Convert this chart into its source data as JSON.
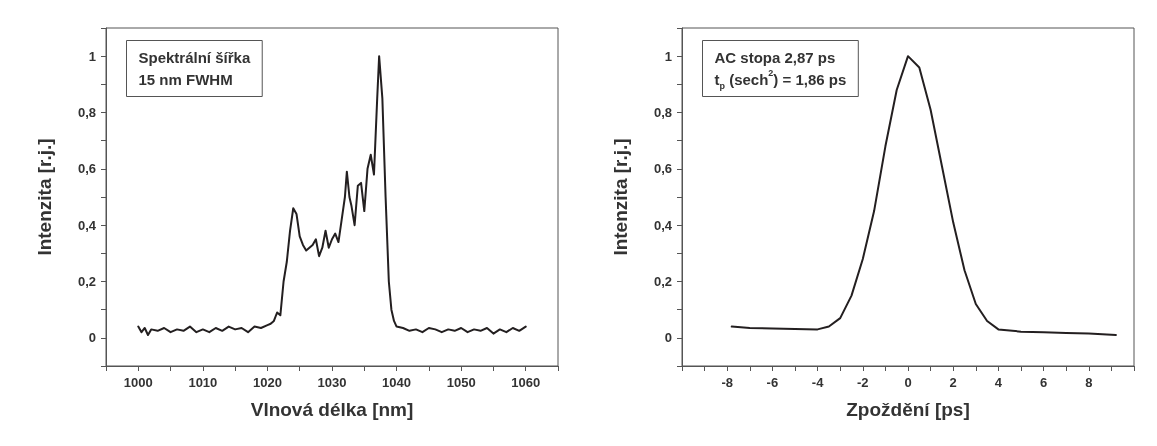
{
  "chart_data": [
    {
      "type": "line",
      "xlabel": "Vlnová délka [nm]",
      "ylabel": "Intenzita [r.j.]",
      "annotations": [
        "Spektrální šířka",
        "15 nm FWHM"
      ],
      "x": [
        1000,
        1000.5,
        1001,
        1001.5,
        1002,
        1003,
        1004,
        1005,
        1006,
        1007,
        1008,
        1009,
        1010,
        1011,
        1012,
        1013,
        1014,
        1015,
        1016,
        1017,
        1018,
        1019,
        1020,
        1020.5,
        1021,
        1021.5,
        1022,
        1022.5,
        1023,
        1023.5,
        1024,
        1024.5,
        1025,
        1025.5,
        1026,
        1026.5,
        1027,
        1027.5,
        1028,
        1028.5,
        1029,
        1029.5,
        1030,
        1030.5,
        1031,
        1031.5,
        1032,
        1032.3,
        1032.7,
        1033,
        1033.5,
        1034,
        1034.5,
        1035,
        1035.5,
        1036,
        1036.5,
        1037,
        1037.3,
        1037.8,
        1038.3,
        1038.8,
        1039.2,
        1039.6,
        1040,
        1041,
        1042,
        1043,
        1044,
        1045,
        1046,
        1047,
        1048,
        1049,
        1050,
        1051,
        1052,
        1053,
        1054,
        1055,
        1056,
        1057,
        1058,
        1059,
        1060
      ],
      "values": [
        0.04,
        0.02,
        0.035,
        0.01,
        0.03,
        0.025,
        0.035,
        0.02,
        0.03,
        0.025,
        0.04,
        0.02,
        0.03,
        0.02,
        0.035,
        0.025,
        0.04,
        0.03,
        0.035,
        0.02,
        0.04,
        0.035,
        0.045,
        0.05,
        0.06,
        0.09,
        0.08,
        0.2,
        0.27,
        0.38,
        0.46,
        0.44,
        0.36,
        0.33,
        0.31,
        0.32,
        0.33,
        0.35,
        0.29,
        0.32,
        0.38,
        0.32,
        0.35,
        0.37,
        0.34,
        0.42,
        0.5,
        0.59,
        0.5,
        0.47,
        0.4,
        0.54,
        0.55,
        0.45,
        0.6,
        0.65,
        0.58,
        0.85,
        1.0,
        0.85,
        0.5,
        0.2,
        0.1,
        0.06,
        0.04,
        0.035,
        0.025,
        0.03,
        0.02,
        0.035,
        0.03,
        0.02,
        0.03,
        0.025,
        0.035,
        0.02,
        0.03,
        0.025,
        0.035,
        0.015,
        0.03,
        0.02,
        0.035,
        0.025,
        0.04
      ],
      "color": "#231f20",
      "line_style": "solid",
      "marker": "none",
      "grid": false,
      "xlim": [
        995,
        1065
      ],
      "xticks": [
        {
          "value": 995,
          "label": null
        },
        1000,
        {
          "value": 1005,
          "label": null
        },
        1010,
        {
          "value": 1015,
          "label": null
        },
        1020,
        {
          "value": 1025,
          "label": null
        },
        1030,
        {
          "value": 1035,
          "label": null
        },
        1040,
        {
          "value": 1045,
          "label": null
        },
        1050,
        {
          "value": 1055,
          "label": null
        },
        1060,
        {
          "value": 1065,
          "label": null
        }
      ],
      "ylim": [
        -0.1,
        1.1
      ],
      "yticks": [
        {
          "value": -0.1,
          "label": null
        },
        {
          "value": 0,
          "label": "0"
        },
        {
          "value": 0.1,
          "label": null
        },
        {
          "value": 0.2,
          "label": "0,2"
        },
        {
          "value": 0.3,
          "label": null
        },
        {
          "value": 0.4,
          "label": "0,4"
        },
        {
          "value": 0.5,
          "label": null
        },
        {
          "value": 0.6,
          "label": "0,6"
        },
        {
          "value": 0.7,
          "label": null
        },
        {
          "value": 0.8,
          "label": "0,8"
        },
        {
          "value": 0.9,
          "label": null
        },
        {
          "value": 1,
          "label": "1"
        },
        {
          "value": 1.1,
          "label": null
        }
      ]
    },
    {
      "type": "line",
      "xlabel": "Zpoždění [ps]",
      "ylabel": "Intenzita [r.j.]",
      "annotations": [
        "AC stopa 2,87 ps",
        "t$_{p}$ (sech$^{2}$) = 1,86 ps"
      ],
      "x": [
        -7.8,
        -7,
        -6,
        -5,
        -4,
        -3.5,
        -3,
        -2.5,
        -2,
        -1.5,
        -1,
        -0.5,
        0,
        0.5,
        1,
        1.5,
        2,
        2.5,
        3,
        3.5,
        4,
        5,
        6,
        7,
        8,
        9.2
      ],
      "values": [
        0.04,
        0.035,
        0.033,
        0.031,
        0.03,
        0.04,
        0.07,
        0.15,
        0.28,
        0.45,
        0.68,
        0.88,
        1.0,
        0.96,
        0.81,
        0.61,
        0.41,
        0.24,
        0.12,
        0.06,
        0.03,
        0.022,
        0.02,
        0.017,
        0.015,
        0.01
      ],
      "color": "#231f20",
      "line_style": "solid",
      "marker": "none",
      "grid": false,
      "xlim": [
        -10,
        10
      ],
      "xticks": [
        {
          "value": -10,
          "label": null
        },
        {
          "value": -9,
          "label": null
        },
        -8,
        {
          "value": -7,
          "label": null
        },
        -6,
        {
          "value": -5,
          "label": null
        },
        -4,
        {
          "value": -3,
          "label": null
        },
        -2,
        {
          "value": -1,
          "label": null
        },
        0,
        {
          "value": 1,
          "label": null
        },
        2,
        {
          "value": 3,
          "label": null
        },
        4,
        {
          "value": 5,
          "label": null
        },
        6,
        {
          "value": 7,
          "label": null
        },
        8,
        {
          "value": 9,
          "label": null
        },
        {
          "value": 10,
          "label": null
        }
      ],
      "ylim": [
        -0.1,
        1.1
      ],
      "yticks": [
        {
          "value": -0.1,
          "label": null
        },
        {
          "value": 0,
          "label": "0"
        },
        {
          "value": 0.1,
          "label": null
        },
        {
          "value": 0.2,
          "label": "0,2"
        },
        {
          "value": 0.3,
          "label": null
        },
        {
          "value": 0.4,
          "label": "0,4"
        },
        {
          "value": 0.5,
          "label": null
        },
        {
          "value": 0.6,
          "label": "0,6"
        },
        {
          "value": 0.7,
          "label": null
        },
        {
          "value": 0.8,
          "label": "0,8"
        },
        {
          "value": 0.9,
          "label": null
        },
        {
          "value": 1,
          "label": "1"
        },
        {
          "value": 1.1,
          "label": null
        }
      ]
    }
  ]
}
